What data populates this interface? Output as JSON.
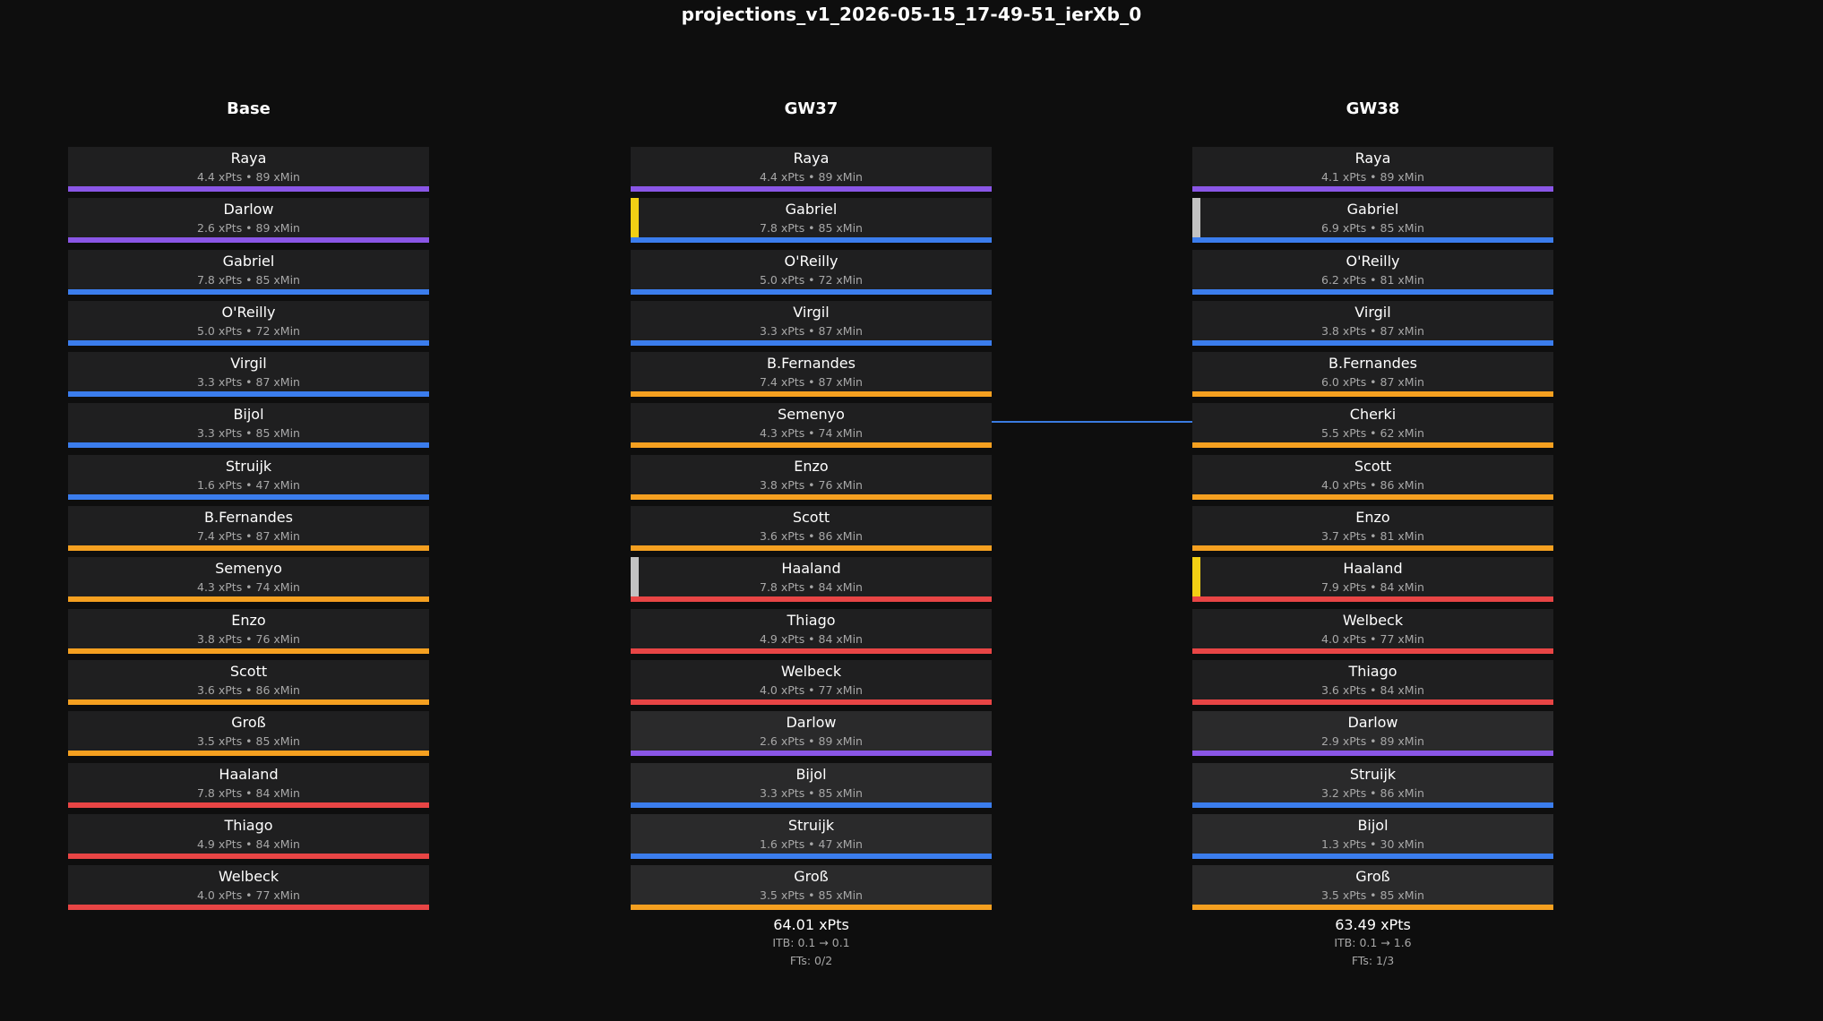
{
  "title": "projections_v1_2026-05-15_17-49-51_ierXb_0",
  "colors": {
    "GKP": "#8a56e6",
    "DEF": "#3b7ded",
    "MID": "#f5a020",
    "FWD": "#e84545",
    "captain": "#f2cf14",
    "vice": "#c2c2c2",
    "transfer_line": "#3a7be0"
  },
  "columns": [
    {
      "header": "Base",
      "players": [
        {
          "name": "Raya",
          "stats": "4.4 xPts • 89 xMin",
          "pos": "GKP"
        },
        {
          "name": "Darlow",
          "stats": "2.6 xPts • 89 xMin",
          "pos": "GKP"
        },
        {
          "name": "Gabriel",
          "stats": "7.8 xPts • 85 xMin",
          "pos": "DEF"
        },
        {
          "name": "O'Reilly",
          "stats": "5.0 xPts • 72 xMin",
          "pos": "DEF"
        },
        {
          "name": "Virgil",
          "stats": "3.3 xPts • 87 xMin",
          "pos": "DEF"
        },
        {
          "name": "Bijol",
          "stats": "3.3 xPts • 85 xMin",
          "pos": "DEF"
        },
        {
          "name": "Struijk",
          "stats": "1.6 xPts • 47 xMin",
          "pos": "DEF"
        },
        {
          "name": "B.Fernandes",
          "stats": "7.4 xPts • 87 xMin",
          "pos": "MID"
        },
        {
          "name": "Semenyo",
          "stats": "4.3 xPts • 74 xMin",
          "pos": "MID"
        },
        {
          "name": "Enzo",
          "stats": "3.8 xPts • 76 xMin",
          "pos": "MID"
        },
        {
          "name": "Scott",
          "stats": "3.6 xPts • 86 xMin",
          "pos": "MID"
        },
        {
          "name": "Groß",
          "stats": "3.5 xPts • 85 xMin",
          "pos": "MID"
        },
        {
          "name": "Haaland",
          "stats": "7.8 xPts • 84 xMin",
          "pos": "FWD"
        },
        {
          "name": "Thiago",
          "stats": "4.9 xPts • 84 xMin",
          "pos": "FWD"
        },
        {
          "name": "Welbeck",
          "stats": "4.0 xPts • 77 xMin",
          "pos": "FWD"
        }
      ]
    },
    {
      "header": "GW37",
      "players": [
        {
          "name": "Raya",
          "stats": "4.4 xPts • 89 xMin",
          "pos": "GKP"
        },
        {
          "name": "Gabriel",
          "stats": "7.8 xPts • 85 xMin",
          "pos": "DEF",
          "armband": "captain"
        },
        {
          "name": "O'Reilly",
          "stats": "5.0 xPts • 72 xMin",
          "pos": "DEF"
        },
        {
          "name": "Virgil",
          "stats": "3.3 xPts • 87 xMin",
          "pos": "DEF"
        },
        {
          "name": "B.Fernandes",
          "stats": "7.4 xPts • 87 xMin",
          "pos": "MID"
        },
        {
          "name": "Semenyo",
          "stats": "4.3 xPts • 74 xMin",
          "pos": "MID"
        },
        {
          "name": "Enzo",
          "stats": "3.8 xPts • 76 xMin",
          "pos": "MID"
        },
        {
          "name": "Scott",
          "stats": "3.6 xPts • 86 xMin",
          "pos": "MID"
        },
        {
          "name": "Haaland",
          "stats": "7.8 xPts • 84 xMin",
          "pos": "FWD",
          "armband": "vice"
        },
        {
          "name": "Thiago",
          "stats": "4.9 xPts • 84 xMin",
          "pos": "FWD"
        },
        {
          "name": "Welbeck",
          "stats": "4.0 xPts • 77 xMin",
          "pos": "FWD"
        },
        {
          "name": "Darlow",
          "stats": "2.6 xPts • 89 xMin",
          "pos": "GKP",
          "bench": true
        },
        {
          "name": "Bijol",
          "stats": "3.3 xPts • 85 xMin",
          "pos": "DEF",
          "bench": true
        },
        {
          "name": "Struijk",
          "stats": "1.6 xPts • 47 xMin",
          "pos": "DEF",
          "bench": true
        },
        {
          "name": "Groß",
          "stats": "3.5 xPts • 85 xMin",
          "pos": "MID",
          "bench": true
        }
      ],
      "summary": {
        "xpts": "64.01 xPts",
        "itb": "ITB: 0.1 → 0.1",
        "fts": "FTs: 0/2"
      }
    },
    {
      "header": "GW38",
      "players": [
        {
          "name": "Raya",
          "stats": "4.1 xPts • 89 xMin",
          "pos": "GKP"
        },
        {
          "name": "Gabriel",
          "stats": "6.9 xPts • 85 xMin",
          "pos": "DEF",
          "armband": "vice"
        },
        {
          "name": "O'Reilly",
          "stats": "6.2 xPts • 81 xMin",
          "pos": "DEF"
        },
        {
          "name": "Virgil",
          "stats": "3.8 xPts • 87 xMin",
          "pos": "DEF"
        },
        {
          "name": "B.Fernandes",
          "stats": "6.0 xPts • 87 xMin",
          "pos": "MID"
        },
        {
          "name": "Cherki",
          "stats": "5.5 xPts • 62 xMin",
          "pos": "MID"
        },
        {
          "name": "Scott",
          "stats": "4.0 xPts • 86 xMin",
          "pos": "MID"
        },
        {
          "name": "Enzo",
          "stats": "3.7 xPts • 81 xMin",
          "pos": "MID"
        },
        {
          "name": "Haaland",
          "stats": "7.9 xPts • 84 xMin",
          "pos": "FWD",
          "armband": "captain"
        },
        {
          "name": "Welbeck",
          "stats": "4.0 xPts • 77 xMin",
          "pos": "FWD"
        },
        {
          "name": "Thiago",
          "stats": "3.6 xPts • 84 xMin",
          "pos": "FWD"
        },
        {
          "name": "Darlow",
          "stats": "2.9 xPts • 89 xMin",
          "pos": "GKP",
          "bench": true
        },
        {
          "name": "Struijk",
          "stats": "3.2 xPts • 86 xMin",
          "pos": "DEF",
          "bench": true
        },
        {
          "name": "Bijol",
          "stats": "1.3 xPts • 30 xMin",
          "pos": "DEF",
          "bench": true
        },
        {
          "name": "Groß",
          "stats": "3.5 xPts • 85 xMin",
          "pos": "MID",
          "bench": true
        }
      ],
      "summary": {
        "xpts": "63.49 xPts",
        "itb": "ITB: 0.1 → 1.6",
        "fts": "FTs: 1/3"
      }
    }
  ]
}
